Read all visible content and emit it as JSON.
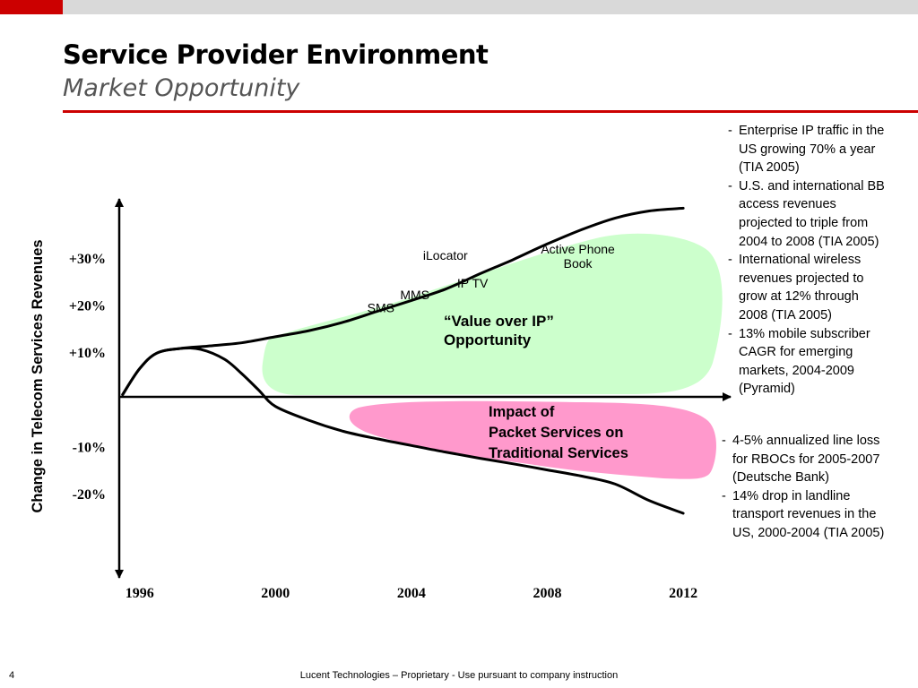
{
  "slide": {
    "title": "Service Provider Environment",
    "subtitle": "Market Opportunity",
    "page_number": "4",
    "footer": "Lucent Technologies – Proprietary - Use pursuant to company instruction"
  },
  "colors": {
    "accent": "#cc0000",
    "growth_area": "#ccffcc",
    "impact_area": "#ff99cc",
    "curve": "#000000"
  },
  "chart_data": {
    "type": "line",
    "title": "",
    "ylabel": "Change in Telecom Services Revenues",
    "xlabel": "",
    "xlim": [
      1995.4,
      2013.0
    ],
    "ylim": [
      -36,
      42
    ],
    "x_ticks": [
      {
        "value": 1996,
        "label": "1996"
      },
      {
        "value": 2000,
        "label": "2000"
      },
      {
        "value": 2004,
        "label": "2004"
      },
      {
        "value": 2008,
        "label": "2008"
      },
      {
        "value": 2012,
        "label": "2012"
      }
    ],
    "y_ticks": [
      {
        "value": 30,
        "label": "+30%"
      },
      {
        "value": 20,
        "label": "+20%"
      },
      {
        "value": 10,
        "label": "+10%"
      },
      {
        "value": -10,
        "label": "-10%"
      },
      {
        "value": -20,
        "label": "-20%"
      }
    ],
    "series": [
      {
        "name": "",
        "x": [
          1995.5,
          1996.0,
          1996.5,
          1997.2,
          1998.0,
          1999.0,
          2000.0,
          2001.0,
          2002.0,
          2003.0,
          2004.0,
          2005.0,
          2006.0,
          2007.0,
          2008.0,
          2009.0,
          2010.0,
          2011.0,
          2012.0
        ],
        "y": [
          1.0,
          6.5,
          9.8,
          10.8,
          11.3,
          12.0,
          13.3,
          14.6,
          16.4,
          18.7,
          21.0,
          23.4,
          26.6,
          29.7,
          33.0,
          36.0,
          38.5,
          40.0,
          40.6
        ]
      },
      {
        "name": "",
        "x": [
          1995.5,
          1996.0,
          1996.5,
          1997.2,
          1997.8,
          1998.5,
          1999.0,
          1999.5,
          2000.0,
          2001.0,
          2002.0,
          2003.0,
          2004.0,
          2005.0,
          2006.0,
          2007.0,
          2008.0,
          2009.0,
          2010.0,
          2011.0,
          2012.0
        ],
        "y": [
          1.0,
          6.5,
          9.8,
          10.8,
          10.6,
          8.5,
          5.5,
          2.0,
          -1.5,
          -4.5,
          -6.8,
          -8.4,
          -9.8,
          -11.2,
          -12.5,
          -13.7,
          -15.0,
          -16.3,
          -18.0,
          -21.5,
          -24.2
        ]
      }
    ],
    "services": [
      {
        "label": "SMS",
        "x": 2003.1,
        "y": 18.5
      },
      {
        "label": "MMS",
        "x": 2004.1,
        "y": 21.3
      },
      {
        "label": "IP TV",
        "x": 2005.8,
        "y": 23.7
      },
      {
        "label": "iLocator",
        "x": 2005.0,
        "y": 29.6
      },
      {
        "label": "Active Phone Book",
        "lines": [
          "Active Phone",
          "Book"
        ],
        "x": 2008.9,
        "y": 31.0
      }
    ],
    "annotations": {
      "growth": [
        "“Value over IP”",
        "Opportunity"
      ],
      "impact": [
        "Impact of",
        "Packet Services on",
        "Traditional Services"
      ]
    }
  },
  "notes_top": [
    [
      "Enterprise IP traffic in the",
      "US growing 70% a year",
      "(TIA 2005)"
    ],
    [
      "U.S. and international BB",
      "access revenues",
      "projected to triple from",
      "2004 to 2008 (TIA 2005)"
    ],
    [
      "International wireless",
      "revenues projected to",
      "grow at 12% through",
      "2008 (TIA 2005)"
    ],
    [
      "13% mobile subscriber",
      "CAGR for emerging",
      "markets, 2004-2009",
      "(Pyramid)"
    ]
  ],
  "notes_bottom": [
    [
      "4-5% annualized line loss",
      "for RBOCs for 2005-2007",
      "(Deutsche Bank)"
    ],
    [
      "14% drop in landline",
      "transport revenues in the",
      "US, 2000-2004 (TIA 2005)"
    ]
  ]
}
